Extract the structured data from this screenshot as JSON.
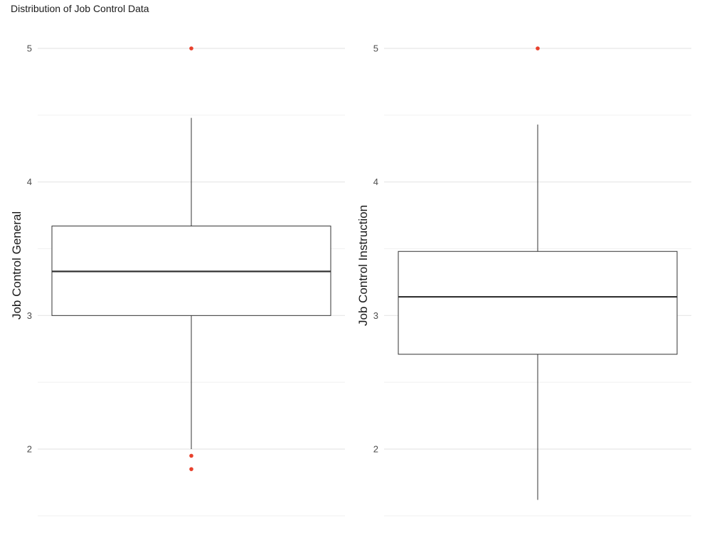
{
  "title": "Distribution of Job Control Data",
  "chart_data": [
    {
      "type": "box",
      "ylabel": "Job Control General",
      "ylim": [
        1.5,
        5.25
      ],
      "y_ticks": [
        2,
        3,
        4,
        5
      ],
      "grid": true,
      "box": {
        "whisker_low": 2.0,
        "q1": 3.0,
        "median": 3.33,
        "q3": 3.67,
        "whisker_high": 4.48
      },
      "outliers": [
        5.0,
        1.95,
        1.85
      ],
      "outlier_color": "#e8412c"
    },
    {
      "type": "box",
      "ylabel": "Job Control Instruction",
      "ylim": [
        1.5,
        5.25
      ],
      "y_ticks": [
        2,
        3,
        4,
        5
      ],
      "grid": true,
      "box": {
        "whisker_low": 1.62,
        "q1": 2.71,
        "median": 3.14,
        "q3": 3.48,
        "whisker_high": 4.43
      },
      "outliers": [
        5.0
      ],
      "outlier_color": "#e8412c"
    }
  ]
}
